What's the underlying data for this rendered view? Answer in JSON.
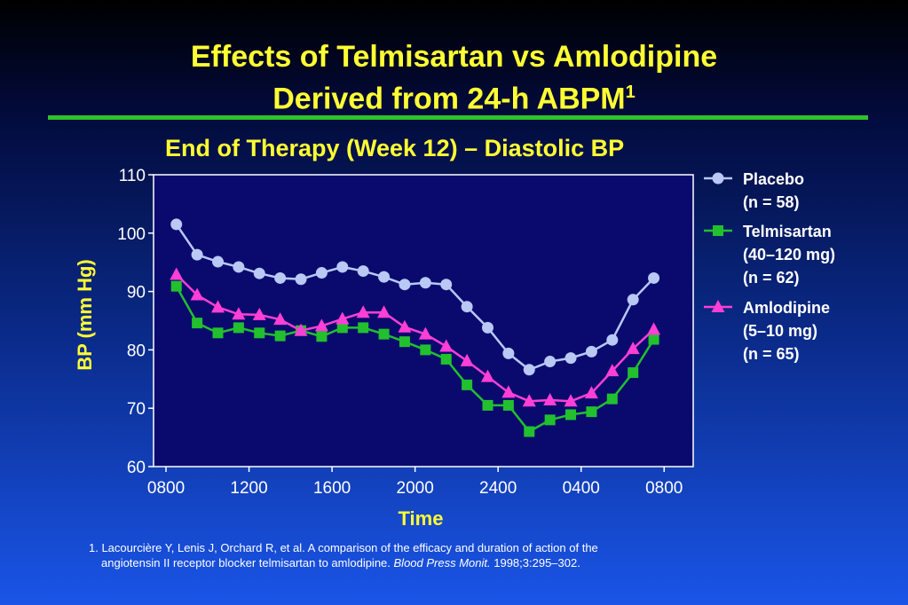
{
  "slide": {
    "title_line1": "Effects of Telmisartan vs Amlodipine",
    "title_line2": "Derived from 24-h ABPM",
    "title_ref": "1",
    "footnote_line1": "1. Lacourcière Y, Lenis J, Orchard R, et al. A comparison of the efficacy and duration of action of the",
    "footnote_line2_a": "angiotensin II receptor blocker telmisartan to amlodipine. ",
    "footnote_line2_journal": "Blood Press Monit.",
    "footnote_line2_b": " 1998;3:295–302."
  },
  "colors": {
    "title": "#ffff33",
    "rule": "#2cc32c",
    "plot_bg": "#0a0a6e",
    "placebo": "#b9c8f5",
    "telmisartan": "#22c02e",
    "amlodipine": "#ff3fd6"
  },
  "chart_data": {
    "type": "line",
    "title": "End of Therapy (Week 12) – Diastolic BP",
    "xlabel": "Time",
    "ylabel": "BP (mm Hg)",
    "ylim": [
      60,
      110
    ],
    "yticks": [
      60,
      70,
      80,
      90,
      100,
      110
    ],
    "xtick_labels": [
      "0800",
      "1200",
      "1600",
      "2000",
      "2400",
      "0400",
      "0800"
    ],
    "xtick_hours": [
      8,
      12,
      16,
      20,
      24,
      28,
      32
    ],
    "xlim_hours": [
      7.4,
      33.4
    ],
    "x_hours": [
      8.5,
      9.5,
      10.5,
      11.5,
      12.5,
      13.5,
      14.5,
      15.5,
      16.5,
      17.5,
      18.5,
      19.5,
      20.5,
      21.5,
      22.5,
      23.5,
      24.5,
      25.5,
      26.5,
      27.5,
      28.5,
      29.5,
      30.5,
      31.5,
      32.5
    ],
    "series": [
      {
        "name": "Placebo",
        "legend_lines": [
          "Placebo",
          "(n = 58)"
        ],
        "marker": "circle",
        "values": [
          101.5,
          96.3,
          95.1,
          94.2,
          93.1,
          92.3,
          92.1,
          93.2,
          94.2,
          93.5,
          92.5,
          91.2,
          91.5,
          91.2,
          87.4,
          83.8,
          79.4,
          76.6,
          78.0,
          78.6,
          79.7,
          81.7,
          88.6,
          92.3,
          null
        ],
        "color": "#b9c8f5"
      },
      {
        "name": "Telmisartan",
        "legend_lines": [
          "Telmisartan",
          "(40–120 mg)",
          "(n = 62)"
        ],
        "marker": "square",
        "values": [
          90.9,
          84.6,
          82.9,
          83.8,
          82.9,
          82.4,
          83.3,
          82.3,
          83.8,
          83.8,
          82.7,
          81.4,
          80.0,
          78.4,
          74.0,
          70.5,
          70.5,
          66.0,
          68.0,
          68.9,
          69.4,
          71.6,
          76.1,
          81.8,
          null
        ],
        "color": "#22c02e"
      },
      {
        "name": "Amlodipine",
        "legend_lines": [
          "Amlodipine",
          "(5–10 mg)",
          "(n = 65)"
        ],
        "marker": "triangle",
        "values": [
          92.9,
          89.4,
          87.3,
          86.1,
          86.0,
          85.2,
          83.3,
          84.1,
          85.3,
          86.4,
          86.4,
          83.9,
          82.7,
          80.6,
          78.1,
          75.4,
          72.7,
          71.2,
          71.4,
          71.2,
          72.6,
          76.4,
          80.2,
          83.5,
          null
        ],
        "color": "#ff3fd6"
      }
    ],
    "grid": false,
    "legend_position": "right"
  }
}
